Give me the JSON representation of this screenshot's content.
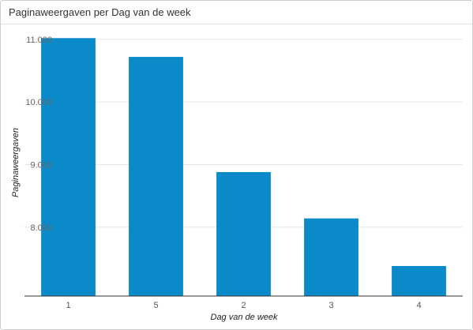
{
  "chart_data": {
    "type": "bar",
    "title": "Paginaweergaven per Dag van de week",
    "xlabel": "Dag van de week",
    "ylabel": "Paginaweergaven",
    "categories": [
      "1",
      "5",
      "2",
      "3",
      "4"
    ],
    "values": [
      11020,
      10720,
      8880,
      8140,
      7380
    ],
    "yticks": [
      8000,
      9000,
      10000,
      11000
    ],
    "ytick_labels": [
      "8.000",
      "9.000",
      "10.000",
      "11.000"
    ],
    "ylim": [
      6900,
      11200
    ],
    "grid": true,
    "legend": "none",
    "bar_color": "#0a8ac8"
  }
}
